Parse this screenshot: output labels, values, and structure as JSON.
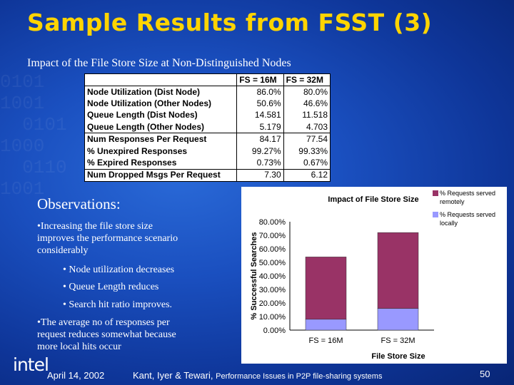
{
  "slide": {
    "title": "Sample Results from FSST (3)",
    "subtitle": "Impact of the File Store Size at Non-Distinguished Nodes"
  },
  "table": {
    "headers": [
      "",
      "FS = 16M",
      "FS = 32M"
    ],
    "rows": [
      {
        "label": "Node Utilization (Dist Node)",
        "fs16": "86.0%",
        "fs32": "80.0%"
      },
      {
        "label": "Node Utilization (Other Nodes)",
        "fs16": "50.6%",
        "fs32": "46.6%"
      },
      {
        "label": "Queue Length (Dist Nodes)",
        "fs16": "14.581",
        "fs32": "11.518"
      },
      {
        "label": "Queue Length (Other Nodes)",
        "fs16": "5.179",
        "fs32": "4.703"
      },
      {
        "label": "Num Responses Per Request",
        "fs16": "84.17",
        "fs32": "77.54"
      },
      {
        "label": "% Unexpired Responses",
        "fs16": "99.27%",
        "fs32": "99.33%"
      },
      {
        "label": "% Expired Responses",
        "fs16": "0.73%",
        "fs32": "0.67%"
      },
      {
        "label": "Num Dropped Msgs Per Request",
        "fs16": "7.30",
        "fs32": "6.12"
      }
    ]
  },
  "observations": {
    "heading": "Observations:",
    "b1": "Increasing the file store size",
    "b1b": "improves the performance scenario",
    "b1c": "considerably",
    "s1": "Node utilization decreases",
    "s2": "Queue Length reduces",
    "s3": "Search hit ratio improves.",
    "b2": "The average no of responses per",
    "b2b": "request reduces somewhat because",
    "b2c": "more local hits occur"
  },
  "footer": {
    "logo": "intel",
    "date": "April 14, 2002",
    "authors": "Kant, Iyer & Tewari,",
    "paper": "Performance Issues in P2P file-sharing systems",
    "page": "50"
  },
  "colors": {
    "title": "#ffd400",
    "remote": "#993366",
    "local": "#9999ff"
  },
  "chart_data": {
    "type": "bar",
    "stacked": true,
    "title": "Impact of File Store Size",
    "xlabel": "File Store Size",
    "ylabel": "% Successful Searches",
    "categories": [
      "FS = 16M",
      "FS = 32M"
    ],
    "ylim": [
      0,
      80
    ],
    "yticks": [
      "0.00%",
      "10.00%",
      "20.00%",
      "30.00%",
      "40.00%",
      "50.00%",
      "60.00%",
      "70.00%",
      "80.00%"
    ],
    "series": [
      {
        "name": "% Requests served locally",
        "values": [
          8,
          16
        ],
        "color": "#9999ff"
      },
      {
        "name": "% Requests served remotely",
        "values": [
          46,
          56
        ],
        "color": "#993366"
      }
    ],
    "legend_lines": [
      [
        "% Requests served",
        "remotely"
      ],
      [
        "% Requests served",
        "locally"
      ]
    ],
    "legend": "top-right",
    "grid": false
  }
}
